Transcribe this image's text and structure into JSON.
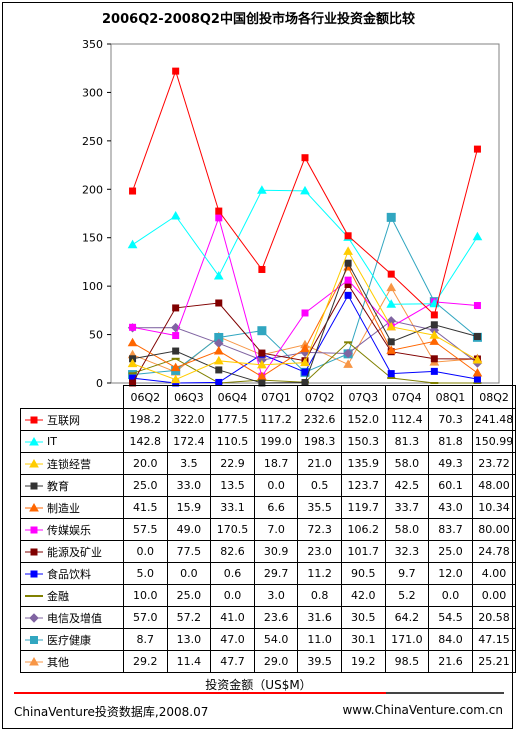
{
  "chart_data": {
    "type": "line",
    "title": "2006Q2-2008Q2中国创投市场各行业投资金额比较",
    "categories": [
      "06Q2",
      "06Q3",
      "06Q4",
      "07Q1",
      "07Q2",
      "07Q3",
      "07Q4",
      "08Q1",
      "08Q2"
    ],
    "ylim": [
      0,
      350
    ],
    "yticks": [
      "0",
      "50",
      "100",
      "150",
      "200",
      "250",
      "300",
      "350"
    ],
    "xlabel": "投资金额（US$M）",
    "series": [
      {
        "name": "互联网",
        "color": "#ff0000",
        "marker": "square",
        "values": [
          198.2,
          322.0,
          177.5,
          117.2,
          232.6,
          152.0,
          112.4,
          70.3,
          241.48
        ],
        "labels": [
          "198.2",
          "322.0",
          "177.5",
          "117.2",
          "232.6",
          "152.0",
          "112.4",
          "70.3",
          "241.48"
        ]
      },
      {
        "name": "IT",
        "color": "#00ffff",
        "marker": "triangle",
        "values": [
          142.8,
          172.4,
          110.5,
          199.0,
          198.3,
          150.3,
          81.3,
          81.8,
          150.99
        ],
        "labels": [
          "142.8",
          "172.4",
          "110.5",
          "199.0",
          "198.3",
          "150.3",
          "81.3",
          "81.8",
          "150.99"
        ]
      },
      {
        "name": "连锁经营",
        "color": "#ffcc00",
        "marker": "triangle",
        "values": [
          20.0,
          3.5,
          22.9,
          18.7,
          21.0,
          135.9,
          58.0,
          49.3,
          23.72
        ],
        "labels": [
          "20.0",
          "3.5",
          "22.9",
          "18.7",
          "21.0",
          "135.9",
          "58.0",
          "49.3",
          "23.72"
        ]
      },
      {
        "name": "教育",
        "color": "#333333",
        "marker": "square",
        "values": [
          25.0,
          33.0,
          13.5,
          0.0,
          0.5,
          123.7,
          42.5,
          60.1,
          48.0
        ],
        "labels": [
          "25.0",
          "33.0",
          "13.5",
          "0.0",
          "0.5",
          "123.7",
          "42.5",
          "60.1",
          "48.00"
        ]
      },
      {
        "name": "制造业",
        "color": "#ff6600",
        "marker": "triangle",
        "values": [
          41.5,
          15.9,
          33.1,
          6.6,
          35.5,
          119.7,
          33.7,
          43.0,
          10.34
        ],
        "labels": [
          "41.5",
          "15.9",
          "33.1",
          "6.6",
          "35.5",
          "119.7",
          "33.7",
          "43.0",
          "10.34"
        ]
      },
      {
        "name": "传媒娱乐",
        "color": "#ff00ff",
        "marker": "square",
        "values": [
          57.5,
          49.0,
          170.5,
          7.0,
          72.3,
          106.2,
          58.0,
          83.7,
          80.0
        ],
        "labels": [
          "57.5",
          "49.0",
          "170.5",
          "7.0",
          "72.3",
          "106.2",
          "58.0",
          "83.7",
          "80.00"
        ]
      },
      {
        "name": "能源及矿业",
        "color": "#800000",
        "marker": "square",
        "values": [
          0.0,
          77.5,
          82.6,
          30.9,
          23.0,
          101.7,
          32.3,
          25.0,
          24.78
        ],
        "labels": [
          "0.0",
          "77.5",
          "82.6",
          "30.9",
          "23.0",
          "101.7",
          "32.3",
          "25.0",
          "24.78"
        ]
      },
      {
        "name": "食品饮料",
        "color": "#0000ff",
        "marker": "square",
        "values": [
          5.0,
          0.0,
          0.6,
          29.7,
          11.2,
          90.5,
          9.7,
          12.0,
          4.0
        ],
        "labels": [
          "5.0",
          "0.0",
          "0.6",
          "29.7",
          "11.2",
          "90.5",
          "9.7",
          "12.0",
          "4.00"
        ]
      },
      {
        "name": "金融",
        "color": "#808000",
        "marker": "dash",
        "values": [
          10.0,
          25.0,
          0.0,
          3.0,
          0.8,
          42.0,
          5.2,
          0.0,
          0.0
        ],
        "labels": [
          "10.0",
          "25.0",
          "0.0",
          "3.0",
          "0.8",
          "42.0",
          "5.2",
          "0.0",
          "0.00"
        ]
      },
      {
        "name": "电信及增值",
        "color": "#8064a2",
        "marker": "diamond",
        "values": [
          57.0,
          57.2,
          41.0,
          23.6,
          31.6,
          30.5,
          64.2,
          54.5,
          20.58
        ],
        "labels": [
          "57.0",
          "57.2",
          "41.0",
          "23.6",
          "31.6",
          "30.5",
          "64.2",
          "54.5",
          "20.58"
        ]
      },
      {
        "name": "医疗健康",
        "color": "#31a6c0",
        "marker": "bigsquare",
        "values": [
          8.7,
          13.0,
          47.0,
          54.0,
          11.0,
          30.1,
          171.0,
          84.0,
          47.15
        ],
        "labels": [
          "8.7",
          "13.0",
          "47.0",
          "54.0",
          "11.0",
          "30.1",
          "171.0",
          "84.0",
          "47.15"
        ]
      },
      {
        "name": "其他",
        "color": "#f79646",
        "marker": "triangle",
        "values": [
          29.2,
          11.4,
          47.7,
          29.0,
          39.5,
          19.2,
          98.5,
          21.6,
          25.21
        ],
        "labels": [
          "29.2",
          "11.4",
          "47.7",
          "29.0",
          "39.5",
          "19.2",
          "98.5",
          "21.6",
          "25.21"
        ]
      }
    ]
  },
  "footer": {
    "source": "ChinaVenture投资数据库,2008.07",
    "website": "www.ChinaVenture.com.cn"
  }
}
